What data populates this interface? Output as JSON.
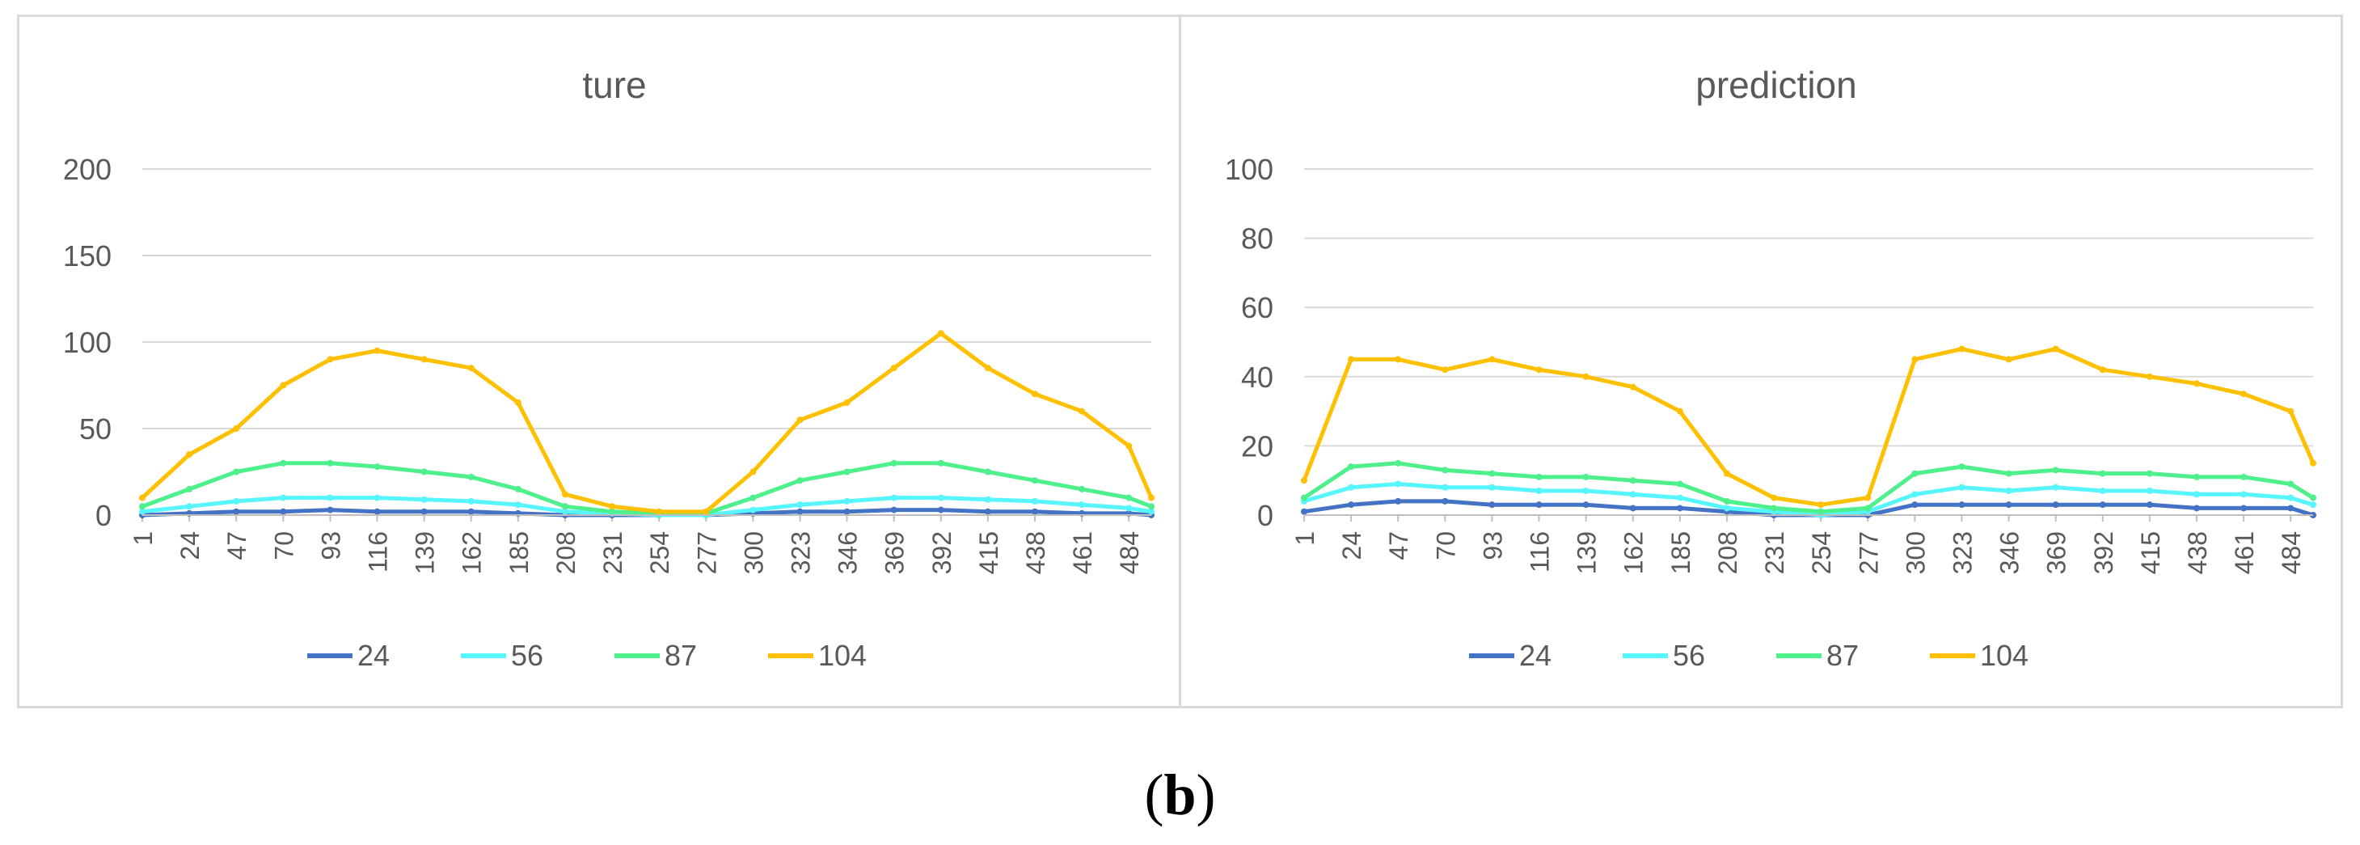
{
  "caption": {
    "open": "(",
    "letter": "b",
    "close": ")"
  },
  "series_colors": {
    "24": "#4472c4",
    "56": "#56f5ff",
    "87": "#4ef08c",
    "104": "#ffc000"
  },
  "chart_data": [
    {
      "type": "line",
      "title": "ture",
      "xlabel": "",
      "ylabel": "",
      "ylim": [
        0,
        200
      ],
      "yticks": [
        0,
        50,
        100,
        150,
        200
      ],
      "xlim": [
        1,
        495
      ],
      "xticks": [
        1,
        24,
        47,
        70,
        93,
        116,
        139,
        162,
        185,
        208,
        231,
        254,
        277,
        300,
        323,
        346,
        369,
        392,
        415,
        438,
        461,
        484
      ],
      "grid": true,
      "legend": "bottom",
      "x": [
        1,
        24,
        47,
        70,
        93,
        116,
        139,
        162,
        185,
        208,
        231,
        254,
        277,
        300,
        323,
        346,
        369,
        392,
        415,
        438,
        461,
        484,
        495
      ],
      "series": [
        {
          "name": "24",
          "color": "#4472c4",
          "values": [
            0,
            1,
            2,
            2,
            3,
            2,
            2,
            2,
            1,
            0,
            0,
            0,
            0,
            1,
            2,
            2,
            3,
            3,
            2,
            2,
            1,
            1,
            0
          ]
        },
        {
          "name": "56",
          "color": "#56f5ff",
          "values": [
            2,
            5,
            8,
            10,
            10,
            10,
            9,
            8,
            6,
            2,
            1,
            0,
            0,
            3,
            6,
            8,
            10,
            10,
            9,
            8,
            6,
            4,
            2
          ]
        },
        {
          "name": "87",
          "color": "#4ef08c",
          "values": [
            5,
            15,
            25,
            30,
            30,
            28,
            25,
            22,
            15,
            5,
            2,
            1,
            1,
            10,
            20,
            25,
            30,
            30,
            25,
            20,
            15,
            10,
            5
          ]
        },
        {
          "name": "104",
          "color": "#ffc000",
          "values": [
            10,
            35,
            50,
            75,
            90,
            95,
            90,
            85,
            65,
            12,
            5,
            2,
            2,
            25,
            55,
            65,
            85,
            105,
            85,
            70,
            60,
            40,
            10
          ]
        }
      ]
    },
    {
      "type": "line",
      "title": "prediction",
      "xlabel": "",
      "ylabel": "",
      "ylim": [
        0,
        100
      ],
      "yticks": [
        0,
        20,
        40,
        60,
        80,
        100
      ],
      "xlim": [
        1,
        495
      ],
      "xticks": [
        1,
        24,
        47,
        70,
        93,
        116,
        139,
        162,
        185,
        208,
        231,
        254,
        277,
        300,
        323,
        346,
        369,
        392,
        415,
        438,
        461,
        484
      ],
      "grid": true,
      "legend": "bottom",
      "x": [
        1,
        24,
        47,
        70,
        93,
        116,
        139,
        162,
        185,
        208,
        231,
        254,
        277,
        300,
        323,
        346,
        369,
        392,
        415,
        438,
        461,
        484,
        495
      ],
      "series": [
        {
          "name": "24",
          "color": "#4472c4",
          "values": [
            1,
            3,
            4,
            4,
            3,
            3,
            3,
            2,
            2,
            1,
            0,
            0,
            0,
            3,
            3,
            3,
            3,
            3,
            3,
            2,
            2,
            2,
            0
          ]
        },
        {
          "name": "56",
          "color": "#56f5ff",
          "values": [
            4,
            8,
            9,
            8,
            8,
            7,
            7,
            6,
            5,
            2,
            1,
            0,
            1,
            6,
            8,
            7,
            8,
            7,
            7,
            6,
            6,
            5,
            3
          ]
        },
        {
          "name": "87",
          "color": "#4ef08c",
          "values": [
            5,
            14,
            15,
            13,
            12,
            11,
            11,
            10,
            9,
            4,
            2,
            1,
            2,
            12,
            14,
            12,
            13,
            12,
            12,
            11,
            11,
            9,
            5
          ]
        },
        {
          "name": "104",
          "color": "#ffc000",
          "values": [
            10,
            45,
            45,
            42,
            45,
            42,
            40,
            37,
            30,
            12,
            5,
            3,
            5,
            45,
            48,
            45,
            48,
            42,
            40,
            38,
            35,
            30,
            15
          ]
        }
      ]
    }
  ]
}
